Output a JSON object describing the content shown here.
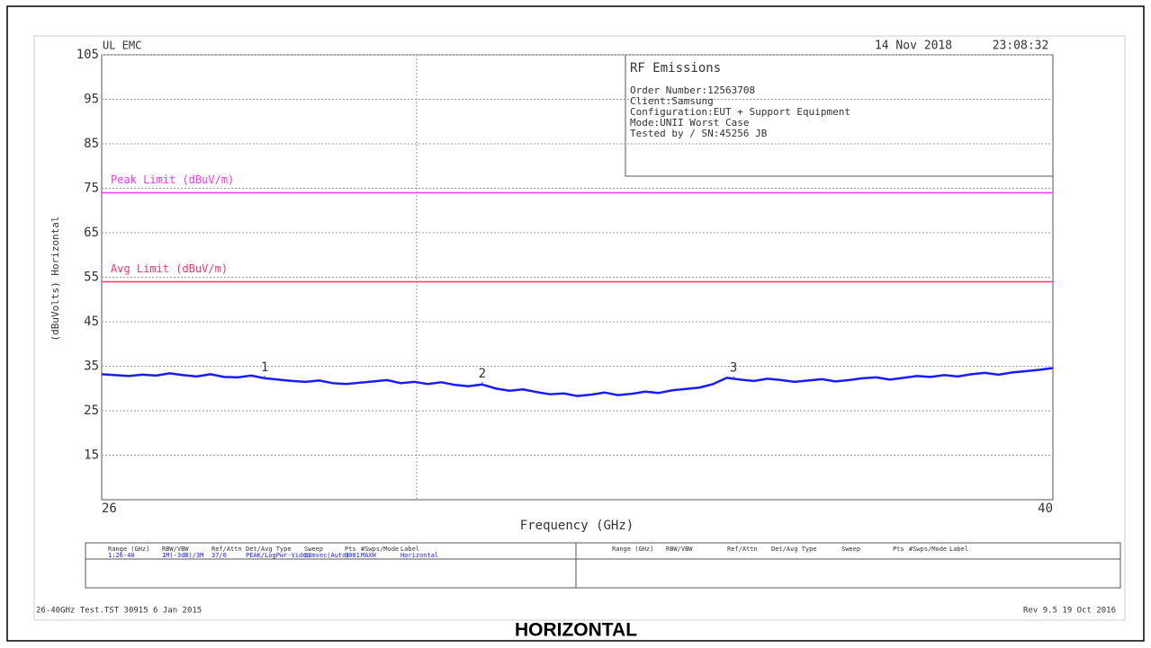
{
  "chart_data": {
    "type": "line",
    "header_left": "UL EMC",
    "date": "14 Nov 2018",
    "time": "23:08:32",
    "info": {
      "title": "RF Emissions",
      "lines": [
        "Order Number:12563708",
        "Client:Samsung",
        "Configuration:EUT + Support Equipment",
        "Mode:UNII Worst Case",
        "Tested by / SN:45256 JB"
      ]
    },
    "y_label": "(dBuVolts) Horizontal",
    "x_label": "Frequency (GHz)",
    "xlim": [
      26,
      40
    ],
    "xticks": [
      26,
      40
    ],
    "ylim": [
      5,
      105
    ],
    "yticks": [
      15,
      25,
      35,
      45,
      55,
      65,
      75,
      85,
      95,
      105
    ],
    "grid": true,
    "limits": [
      {
        "name": "Peak Limit (dBuV/m)",
        "value": 74,
        "color": "#ff33ff"
      },
      {
        "name": "Avg Limit (dBuV/m)",
        "value": 54,
        "color": "#ff3366"
      }
    ],
    "x": [
      26.0,
      26.2,
      26.4,
      26.6,
      26.8,
      27.0,
      27.2,
      27.4,
      27.6,
      27.8,
      28.0,
      28.2,
      28.4,
      28.6,
      28.8,
      29.0,
      29.2,
      29.4,
      29.6,
      29.8,
      30.0,
      30.2,
      30.4,
      30.6,
      30.8,
      31.0,
      31.2,
      31.4,
      31.6,
      31.8,
      32.0,
      32.2,
      32.4,
      32.6,
      32.8,
      33.0,
      33.2,
      33.4,
      33.6,
      33.8,
      34.0,
      34.2,
      34.4,
      34.6,
      34.8,
      35.0,
      35.2,
      35.4,
      35.6,
      35.8,
      36.0,
      36.2,
      36.4,
      36.6,
      36.8,
      37.0,
      37.2,
      37.4,
      37.6,
      37.8,
      38.0,
      38.2,
      38.4,
      38.6,
      38.8,
      39.0,
      39.2,
      39.4,
      39.6,
      39.8,
      40.0
    ],
    "series": [
      {
        "name": "Horizontal",
        "color": "#1a1aff",
        "values": [
          33.2,
          33.0,
          32.8,
          33.1,
          32.9,
          33.4,
          33.0,
          32.7,
          33.2,
          32.6,
          32.5,
          32.9,
          32.3,
          32.0,
          31.7,
          31.5,
          31.8,
          31.2,
          31.0,
          31.3,
          31.6,
          31.9,
          31.2,
          31.5,
          31.0,
          31.4,
          30.8,
          30.5,
          30.9,
          30.0,
          29.5,
          29.8,
          29.2,
          28.7,
          28.9,
          28.3,
          28.6,
          29.1,
          28.5,
          28.8,
          29.3,
          29.0,
          29.6,
          29.9,
          30.2,
          31.0,
          32.4,
          32.0,
          31.7,
          32.2,
          31.9,
          31.5,
          31.8,
          32.1,
          31.6,
          31.9,
          32.3,
          32.5,
          32.0,
          32.4,
          32.8,
          32.6,
          33.0,
          32.7,
          33.2,
          33.5,
          33.1,
          33.6,
          33.9,
          34.2,
          34.6
        ]
      }
    ],
    "markers": [
      {
        "label": "1",
        "x": 28.4,
        "y": 32.3
      },
      {
        "label": "2",
        "x": 31.6,
        "y": 30.9
      },
      {
        "label": "3",
        "x": 35.3,
        "y": 32.2
      }
    ],
    "settings_table": {
      "headers": [
        "Range (GHz)",
        "RBW/VBW",
        "Ref/Attn",
        "Det/Avg Type",
        "Sweep",
        "Pts",
        "#Swps/Mode",
        "Label",
        "Range (GHz)",
        "RBW/VBW",
        "Ref/Attn",
        "Det/Avg Type",
        "Sweep",
        "Pts",
        "#Swps/Mode",
        "Label"
      ],
      "rows": [
        [
          "1:26-40",
          "1M(-3dB)/3M",
          "37/0",
          "PEAK/LogPwr-Video",
          "23msec(Auto)",
          "9001",
          "MAXH",
          "Horizontal"
        ]
      ]
    },
    "footer_left": "26-40GHz Test.TST 30915  6 Jan 2015",
    "footer_right": "Rev 9.5 19 Oct 2016",
    "caption": "HORIZONTAL"
  }
}
